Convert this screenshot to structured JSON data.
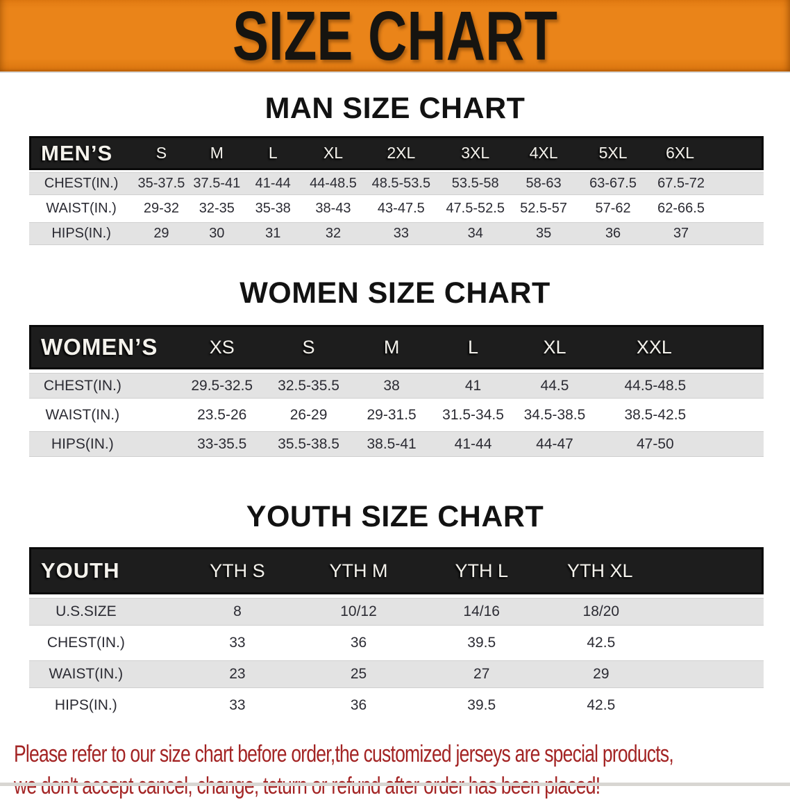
{
  "banner": {
    "title": "SIZE CHART",
    "bg_color": "#ea8419",
    "text_color": "#161410"
  },
  "colors": {
    "table_header_bg": "#1d1d1d",
    "row_stripe_gray": "#e3e3e3",
    "value_text": "#2b2b33",
    "disclaimer_red": "#a32424"
  },
  "sections": [
    {
      "title": "MAN SIZE CHART",
      "header_label": "MEN’S",
      "columns": [
        "S",
        "M",
        "L",
        "XL",
        "2XL",
        "3XL",
        "4XL",
        "5XL",
        "6XL"
      ],
      "rows": [
        {
          "label": "CHEST(IN.)",
          "values": [
            "35-37.5",
            "37.5-41",
            "41-44",
            "44-48.5",
            "48.5-53.5",
            "53.5-58",
            "58-63",
            "63-67.5",
            "67.5-72"
          ]
        },
        {
          "label": "WAIST(IN.)",
          "values": [
            "29-32",
            "32-35",
            "35-38",
            "38-43",
            "43-47.5",
            "47.5-52.5",
            "52.5-57",
            "57-62",
            "62-66.5"
          ]
        },
        {
          "label": "HIPS(IN.)",
          "values": [
            "29",
            "30",
            "31",
            "32",
            "33",
            "34",
            "35",
            "36",
            "37"
          ]
        }
      ]
    },
    {
      "title": "WOMEN SIZE CHART",
      "header_label": "WOMEN’S",
      "columns": [
        "XS",
        "S",
        "M",
        "L",
        "XL",
        "XXL"
      ],
      "rows": [
        {
          "label": "CHEST(IN.)",
          "values": [
            "29.5-32.5",
            "32.5-35.5",
            "38",
            "41",
            "44.5",
            "44.5-48.5"
          ]
        },
        {
          "label": "WAIST(IN.)",
          "values": [
            "23.5-26",
            "26-29",
            "29-31.5",
            "31.5-34.5",
            "34.5-38.5",
            "38.5-42.5"
          ]
        },
        {
          "label": "HIPS(IN.)",
          "values": [
            "33-35.5",
            "35.5-38.5",
            "38.5-41",
            "41-44",
            "44-47",
            "47-50"
          ]
        }
      ]
    },
    {
      "title": "YOUTH SIZE CHART",
      "header_label": "YOUTH",
      "columns": [
        "YTH S",
        "YTH M",
        "YTH L",
        "YTH XL"
      ],
      "rows": [
        {
          "label": "U.S.SIZE",
          "values": [
            "8",
            "10/12",
            "14/16",
            "18/20"
          ]
        },
        {
          "label": "CHEST(IN.)",
          "values": [
            "33",
            "36",
            "39.5",
            "42.5"
          ]
        },
        {
          "label": "WAIST(IN.)",
          "values": [
            "23",
            "25",
            "27",
            "29"
          ]
        },
        {
          "label": "HIPS(IN.)",
          "values": [
            "33",
            "36",
            "39.5",
            "42.5"
          ]
        }
      ]
    }
  ],
  "disclaimer": {
    "line1": "Please refer to our size chart before order,the customized jerseys are special products,",
    "line2": "we don't accept cancel, change, teturn or refund after order has been placed!"
  }
}
